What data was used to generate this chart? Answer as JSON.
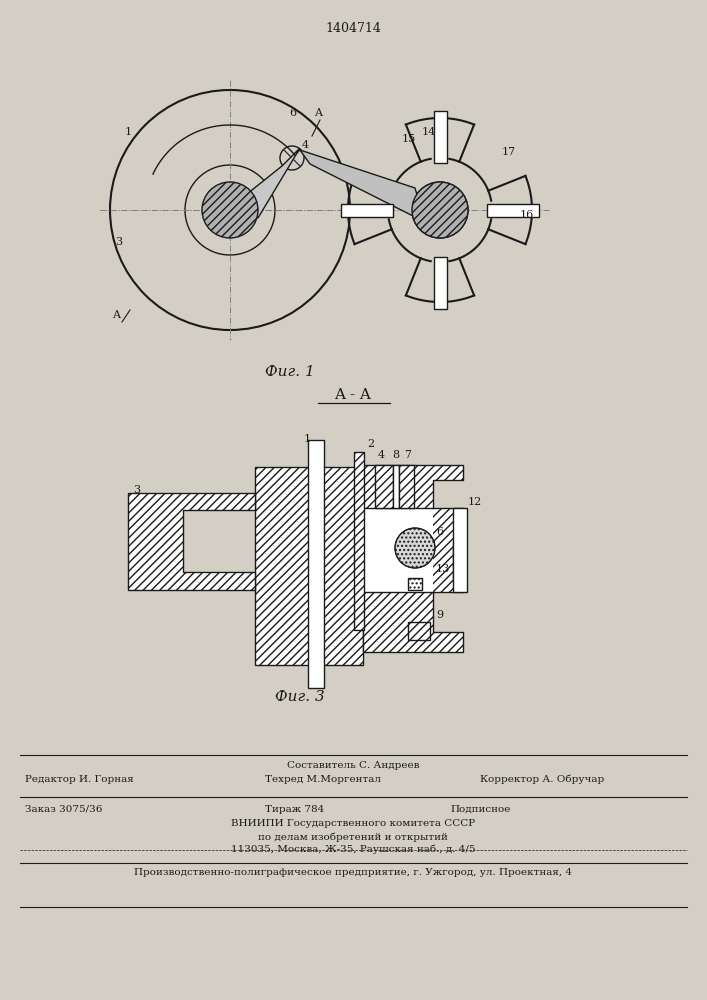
{
  "patent_number": "1404714",
  "fig1_caption": "Фиг. 1",
  "fig3_caption": "Фиг. 3",
  "section_label": "A - A",
  "bg_color": "#e8e4dc",
  "line_color": "#1a1a1a",
  "hatch_color": "#1a1a1a",
  "page_bg": "#d4cfc4",
  "footer_line1_left": "Редактор И. Горная",
  "footer_line1_center": "Техред М.Моргентал",
  "footer_line1_right": "Корректор А. Обручар",
  "footer_composer": "Составитель С. Андреев",
  "footer_order": "Заказ 3075/36",
  "footer_tirazh": "Тираж 784",
  "footer_podpisnoe": "Подписное",
  "footer_vniip": "ВНИИПИ Государственного комитета СССР",
  "footer_po_delam": "по делам изобретений и открытий",
  "footer_address": "113035, Москва, Ж-35, Раушская наб., д. 4/5",
  "footer_bottom": "Производственно-полиграфическое предприятие, г. Ужгород, ул. Проектная, 4"
}
